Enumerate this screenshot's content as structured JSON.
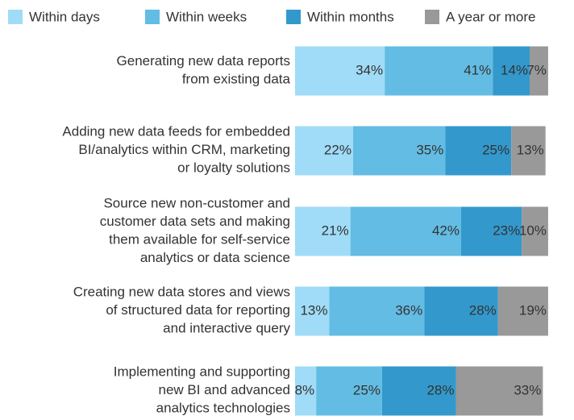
{
  "chart_data": {
    "type": "stacked-bar-horizontal",
    "categories": [
      "Generating new data reports\nfrom existing data",
      "Adding new data feeds for embedded\nBI/analytics within CRM, marketing\nor loyalty solutions",
      "Source new non-customer and\ncustomer data sets and making\nthem available for self-service\nanalytics or data science",
      "Creating new data stores and views\nof structured data for reporting\nand interactive query",
      "Implementing and supporting\nnew BI and advanced\nanalytics technologies"
    ],
    "series": [
      {
        "name": "Within days",
        "color": "#a0dcf7",
        "values": [
          34,
          22,
          21,
          13,
          8
        ],
        "value_labels": [
          "34%",
          "22%",
          "21%",
          "13%",
          "8%"
        ]
      },
      {
        "name": "Within weeks",
        "color": "#63bce3",
        "values": [
          41,
          35,
          42,
          36,
          25
        ],
        "value_labels": [
          "41%",
          "35%",
          "42%",
          "36%",
          "25%"
        ]
      },
      {
        "name": "Within months",
        "color": "#3399cc",
        "values": [
          14,
          25,
          23,
          28,
          28
        ],
        "value_labels": [
          "14%",
          "25%",
          "23%",
          "28%",
          "28%"
        ]
      },
      {
        "name": "A year or more",
        "color": "#999999",
        "values": [
          7,
          13,
          10,
          19,
          33
        ],
        "value_labels": [
          "7%",
          "13%",
          "10%",
          "19%",
          "33%"
        ]
      }
    ],
    "legend": "top"
  }
}
